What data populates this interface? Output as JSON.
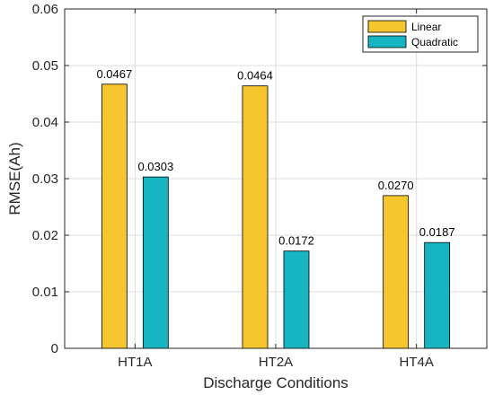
{
  "chart_data": {
    "type": "bar",
    "categories": [
      "HT1A",
      "HT2A",
      "HT4A"
    ],
    "series": [
      {
        "name": "Linear",
        "values": [
          0.0467,
          0.0464,
          0.027
        ],
        "labels": [
          "0.0467",
          "0.0464",
          "0.0270"
        ],
        "color": "#F6C62F"
      },
      {
        "name": "Quadratic",
        "values": [
          0.0303,
          0.0172,
          0.0187
        ],
        "labels": [
          "0.0303",
          "0.0172",
          "0.0187"
        ],
        "color": "#17B4C1"
      }
    ],
    "xlabel": "Discharge Conditions",
    "ylabel": "RMSE(Ah)",
    "ylim": [
      0,
      0.06
    ],
    "yticks": [
      0,
      0.01,
      0.02,
      0.03,
      0.04,
      0.05,
      0.06
    ],
    "ytick_labels": [
      "0",
      "0.01",
      "0.02",
      "0.03",
      "0.04",
      "0.05",
      "0.06"
    ],
    "grid": true,
    "legend_position": "top-right"
  }
}
